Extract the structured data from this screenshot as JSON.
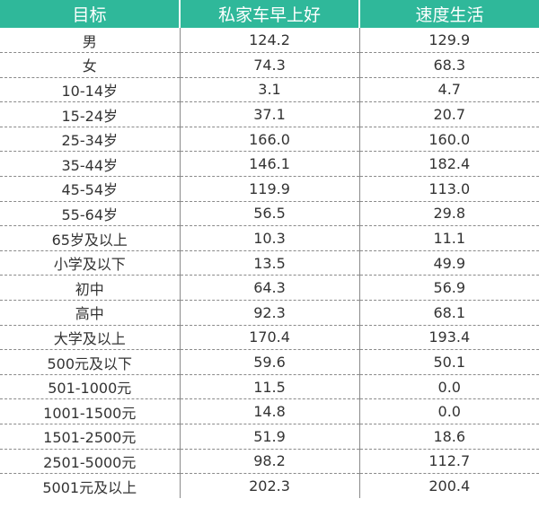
{
  "table": {
    "headers": [
      "目标",
      "私家车早上好",
      "速度生活"
    ],
    "rows": [
      [
        "男",
        "124.2",
        "129.9"
      ],
      [
        "女",
        "74.3",
        "68.3"
      ],
      [
        "10-14岁",
        "3.1",
        "4.7"
      ],
      [
        "15-24岁",
        "37.1",
        "20.7"
      ],
      [
        "25-34岁",
        "166.0",
        "160.0"
      ],
      [
        "35-44岁",
        "146.1",
        "182.4"
      ],
      [
        "45-54岁",
        "119.9",
        "113.0"
      ],
      [
        "55-64岁",
        "56.5",
        "29.8"
      ],
      [
        "65岁及以上",
        "10.3",
        "11.1"
      ],
      [
        "小学及以下",
        "13.5",
        "49.9"
      ],
      [
        "初中",
        "64.3",
        "56.9"
      ],
      [
        "高中",
        "92.3",
        "68.1"
      ],
      [
        "大学及以上",
        "170.4",
        "193.4"
      ],
      [
        "500元及以下",
        "59.6",
        "50.1"
      ],
      [
        "501-1000元",
        "11.5",
        "0.0"
      ],
      [
        "1001-1500元",
        "14.8",
        "0.0"
      ],
      [
        "1501-2500元",
        "51.9",
        "18.6"
      ],
      [
        "2501-5000元",
        "98.2",
        "112.7"
      ],
      [
        "5001元及以上",
        "202.3",
        "200.4"
      ]
    ]
  },
  "colors": {
    "header_background": "#2fb89a",
    "header_text": "#ffffff",
    "cell_text": "#333333",
    "divider": "#8a8a8a"
  }
}
